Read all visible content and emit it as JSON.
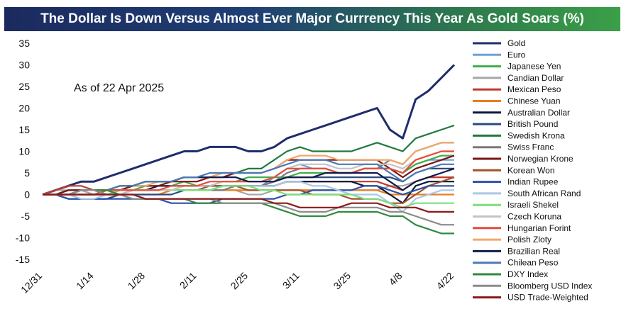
{
  "chart_data": {
    "type": "line",
    "title": "The Dollar Is Down Versus Almost Ever Major Currrency This Year As Gold Soars (%)",
    "annotation": "As of 22 Apr 2025",
    "xlabel": "",
    "ylabel": "",
    "ylim": [
      -15,
      35
    ],
    "y_ticks": [
      35,
      30,
      25,
      20,
      15,
      10,
      5,
      0,
      -5,
      -10,
      -15
    ],
    "x_ticks": [
      "12/31",
      "1/14",
      "1/28",
      "2/11",
      "2/25",
      "3/11",
      "3/25",
      "4/8",
      "4/22"
    ],
    "x_dates": [
      "12/31",
      "1/3",
      "1/7",
      "1/10",
      "1/14",
      "1/17",
      "1/21",
      "1/24",
      "1/28",
      "1/31",
      "2/4",
      "2/7",
      "2/11",
      "2/14",
      "2/18",
      "2/21",
      "2/25",
      "2/28",
      "3/4",
      "3/7",
      "3/11",
      "3/14",
      "3/18",
      "3/21",
      "3/25",
      "3/28",
      "4/1",
      "4/4",
      "4/8",
      "4/11",
      "4/15",
      "4/18",
      "4/22"
    ],
    "grid": false,
    "legend_position": "right",
    "series": [
      {
        "name": "Gold",
        "color": "#1f2d6b",
        "values": [
          0,
          1,
          2,
          3,
          3,
          4,
          5,
          6,
          7,
          8,
          9,
          10,
          10,
          11,
          11,
          11,
          10,
          10,
          11,
          13,
          14,
          15,
          16,
          17,
          18,
          19,
          20,
          15,
          13,
          22,
          24,
          27,
          30
        ]
      },
      {
        "name": "Euro",
        "color": "#6fa0d8",
        "values": [
          0,
          0,
          0,
          -1,
          -1,
          -1,
          0,
          1,
          1,
          1,
          1,
          2,
          2,
          2,
          2,
          2,
          2,
          2,
          4,
          6,
          7,
          6,
          6,
          5,
          5,
          6,
          6,
          6,
          5,
          7,
          8,
          8,
          8
        ]
      },
      {
        "name": "Japanese Yen",
        "color": "#3fae49",
        "values": [
          0,
          0,
          0,
          0,
          0,
          1,
          1,
          1,
          2,
          2,
          2,
          3,
          2,
          2,
          3,
          3,
          4,
          4,
          4,
          4,
          5,
          5,
          5,
          5,
          5,
          6,
          6,
          6,
          5,
          7,
          8,
          9,
          9
        ]
      },
      {
        "name": "Candian Dollar",
        "color": "#a6a6a6",
        "values": [
          0,
          1,
          1,
          1,
          0,
          0,
          1,
          1,
          1,
          1,
          1,
          1,
          1,
          1,
          1,
          1,
          0,
          0,
          1,
          1,
          1,
          1,
          1,
          1,
          1,
          1,
          1,
          2,
          2,
          3,
          4,
          4,
          4
        ]
      },
      {
        "name": "Mexican Peso",
        "color": "#c0392b",
        "values": [
          0,
          1,
          2,
          2,
          1,
          1,
          1,
          1,
          1,
          1,
          1,
          1,
          1,
          1,
          2,
          2,
          2,
          2,
          2,
          3,
          3,
          3,
          3,
          3,
          3,
          3,
          3,
          2,
          1,
          3,
          4,
          4,
          4
        ]
      },
      {
        "name": "Chinese Yuan",
        "color": "#e67e22",
        "values": [
          0,
          0,
          0,
          0,
          0,
          0,
          0,
          0,
          0,
          0,
          1,
          1,
          1,
          1,
          1,
          1,
          1,
          1,
          1,
          1,
          1,
          1,
          1,
          1,
          1,
          1,
          1,
          0,
          0,
          0,
          0,
          0,
          0
        ]
      },
      {
        "name": "Australian Dollar",
        "color": "#0b1a3a",
        "values": [
          0,
          0,
          1,
          1,
          1,
          0,
          1,
          1,
          1,
          2,
          2,
          2,
          2,
          2,
          2,
          2,
          2,
          2,
          2,
          3,
          3,
          3,
          3,
          3,
          3,
          2,
          2,
          0,
          -2,
          2,
          3,
          3,
          3
        ]
      },
      {
        "name": "British Pound",
        "color": "#2c4a7c",
        "values": [
          0,
          0,
          -1,
          -1,
          -1,
          -1,
          0,
          0,
          0,
          0,
          0,
          1,
          1,
          1,
          2,
          2,
          2,
          2,
          3,
          4,
          4,
          4,
          4,
          4,
          4,
          4,
          4,
          4,
          3,
          5,
          6,
          6,
          6
        ]
      },
      {
        "name": "Swedish Krona",
        "color": "#1f7a3f",
        "values": [
          0,
          0,
          0,
          0,
          0,
          1,
          1,
          2,
          3,
          3,
          3,
          4,
          4,
          4,
          5,
          5,
          6,
          6,
          8,
          10,
          11,
          10,
          10,
          10,
          10,
          11,
          12,
          11,
          10,
          13,
          14,
          15,
          16
        ]
      },
      {
        "name": "Swiss Franc",
        "color": "#7a7a7a",
        "values": [
          0,
          0,
          0,
          0,
          0,
          0,
          0,
          1,
          1,
          1,
          1,
          1,
          1,
          1,
          1,
          2,
          2,
          2,
          3,
          5,
          6,
          6,
          6,
          5,
          5,
          6,
          6,
          8,
          7,
          10,
          11,
          12,
          12
        ]
      },
      {
        "name": "Norwegian Krone",
        "color": "#7b1414",
        "values": [
          0,
          0,
          1,
          1,
          1,
          1,
          1,
          2,
          2,
          2,
          3,
          3,
          3,
          4,
          4,
          5,
          5,
          5,
          6,
          8,
          8,
          8,
          8,
          8,
          8,
          8,
          8,
          6,
          4,
          6,
          7,
          8,
          9
        ]
      },
      {
        "name": "Korean Won",
        "color": "#a0522d",
        "values": [
          0,
          0,
          0,
          1,
          1,
          1,
          1,
          1,
          1,
          1,
          1,
          1,
          1,
          2,
          2,
          2,
          1,
          1,
          1,
          1,
          1,
          0,
          0,
          0,
          -1,
          -1,
          -1,
          -2,
          -2,
          0,
          2,
          3,
          4
        ]
      },
      {
        "name": "Indian Rupee",
        "color": "#2d4fa8",
        "values": [
          0,
          0,
          -1,
          -1,
          -1,
          -1,
          -1,
          -1,
          -1,
          -1,
          -2,
          -2,
          -2,
          -2,
          -1,
          -1,
          -1,
          -1,
          -1,
          0,
          0,
          1,
          1,
          1,
          1,
          2,
          2,
          1,
          0,
          1,
          2,
          2,
          2
        ]
      },
      {
        "name": "South African Rand",
        "color": "#a8c8e8",
        "values": [
          0,
          0,
          0,
          -1,
          -1,
          0,
          1,
          1,
          1,
          1,
          1,
          1,
          1,
          1,
          2,
          2,
          2,
          2,
          2,
          3,
          3,
          2,
          2,
          1,
          0,
          0,
          0,
          -2,
          -4,
          -1,
          0,
          1,
          1
        ]
      },
      {
        "name": "Israeli Shekel",
        "color": "#7ae07a",
        "values": [
          0,
          0,
          0,
          0,
          0,
          0,
          1,
          1,
          1,
          1,
          1,
          1,
          1,
          1,
          2,
          2,
          2,
          1,
          1,
          0,
          0,
          0,
          0,
          0,
          0,
          -1,
          -1,
          -2,
          -3,
          -2,
          -2,
          -2,
          -2
        ]
      },
      {
        "name": "Czech Koruna",
        "color": "#c4c4c4",
        "values": [
          0,
          0,
          0,
          0,
          0,
          0,
          0,
          1,
          1,
          1,
          1,
          2,
          2,
          2,
          3,
          3,
          3,
          3,
          4,
          6,
          7,
          7,
          7,
          6,
          6,
          7,
          7,
          7,
          6,
          8,
          9,
          10,
          10
        ]
      },
      {
        "name": "Hungarian Forint",
        "color": "#e74c3c",
        "values": [
          0,
          0,
          0,
          0,
          0,
          1,
          1,
          1,
          1,
          1,
          2,
          2,
          2,
          3,
          3,
          3,
          3,
          3,
          4,
          6,
          6,
          6,
          6,
          5,
          5,
          6,
          6,
          6,
          5,
          8,
          9,
          10,
          10
        ]
      },
      {
        "name": "Polish Zloty",
        "color": "#f0a868",
        "values": [
          0,
          0,
          0,
          1,
          1,
          1,
          2,
          2,
          2,
          3,
          3,
          4,
          4,
          4,
          5,
          5,
          5,
          5,
          6,
          8,
          9,
          9,
          9,
          8,
          8,
          8,
          8,
          8,
          7,
          10,
          11,
          12,
          12
        ]
      },
      {
        "name": "Brazilian Real",
        "color": "#111a4a",
        "values": [
          0,
          0,
          0,
          1,
          1,
          1,
          2,
          2,
          3,
          3,
          3,
          4,
          4,
          4,
          4,
          4,
          3,
          3,
          3,
          4,
          4,
          4,
          5,
          5,
          5,
          5,
          5,
          3,
          1,
          3,
          4,
          5,
          6
        ]
      },
      {
        "name": "Chilean Peso",
        "color": "#4a7ab8",
        "values": [
          0,
          0,
          0,
          1,
          1,
          1,
          2,
          2,
          3,
          3,
          3,
          4,
          4,
          5,
          5,
          5,
          5,
          5,
          6,
          7,
          8,
          8,
          8,
          7,
          7,
          7,
          7,
          5,
          3,
          5,
          6,
          7,
          7
        ]
      },
      {
        "name": "DXY Index",
        "color": "#2e8b3e",
        "values": [
          0,
          0,
          0,
          1,
          1,
          1,
          0,
          -1,
          -1,
          -1,
          -1,
          -1,
          -2,
          -2,
          -2,
          -2,
          -2,
          -2,
          -3,
          -4,
          -5,
          -5,
          -5,
          -4,
          -4,
          -4,
          -4,
          -5,
          -5,
          -7,
          -8,
          -9,
          -9
        ]
      },
      {
        "name": "Bloomberg USD Index",
        "color": "#8c8c8c",
        "values": [
          0,
          0,
          0,
          1,
          1,
          0,
          0,
          -1,
          -1,
          -1,
          -1,
          -1,
          -1,
          -1,
          -2,
          -2,
          -2,
          -2,
          -2,
          -3,
          -4,
          -4,
          -4,
          -3,
          -3,
          -3,
          -3,
          -4,
          -4,
          -5,
          -6,
          -7,
          -7
        ]
      },
      {
        "name": "USD Trade-Weighted",
        "color": "#8b1a1a",
        "values": [
          0,
          0,
          0,
          0,
          0,
          0,
          0,
          0,
          -1,
          -1,
          -1,
          -1,
          -1,
          -1,
          -1,
          -1,
          -1,
          -1,
          -2,
          -2,
          -3,
          -3,
          -3,
          -3,
          -2,
          -2,
          -2,
          -3,
          -3,
          -3,
          -4,
          -4,
          -4
        ]
      }
    ]
  }
}
